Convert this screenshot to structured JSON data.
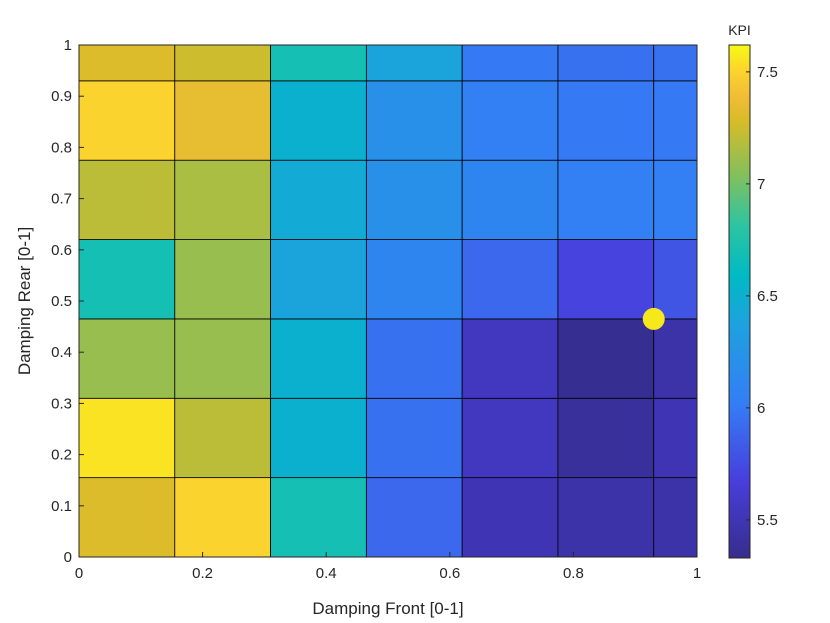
{
  "chart_data": {
    "type": "heatmap",
    "title": "",
    "xlabel": "Damping Front [0-1]",
    "ylabel": "Damping Rear [0-1]",
    "xlim": [
      0,
      1
    ],
    "ylim": [
      0,
      1
    ],
    "x_ticks": [
      "0",
      "0.2",
      "0.4",
      "0.6",
      "0.8",
      "1"
    ],
    "y_ticks": [
      "0",
      "0.1",
      "0.2",
      "0.3",
      "0.4",
      "0.5",
      "0.6",
      "0.7",
      "0.8",
      "0.9",
      "1"
    ],
    "x_edges": [
      0,
      0.155,
      0.31,
      0.465,
      0.62,
      0.775,
      0.93,
      1
    ],
    "y_edges": [
      0,
      0.155,
      0.31,
      0.465,
      0.62,
      0.775,
      0.93,
      1
    ],
    "values": [
      [
        7.3,
        7.5,
        6.7,
        5.9,
        5.5,
        5.45,
        5.45
      ],
      [
        7.55,
        7.2,
        6.5,
        5.95,
        5.55,
        5.4,
        5.5
      ],
      [
        7.1,
        7.1,
        6.5,
        5.95,
        5.55,
        5.35,
        5.45
      ],
      [
        6.7,
        7.1,
        6.4,
        6.1,
        5.9,
        5.7,
        5.8
      ],
      [
        7.2,
        7.15,
        6.45,
        6.2,
        6.1,
        6.05,
        6.05
      ],
      [
        7.5,
        7.35,
        6.5,
        6.2,
        6.05,
        6.0,
        6.0
      ],
      [
        7.3,
        7.25,
        6.7,
        6.4,
        6.0,
        5.95,
        5.95
      ]
    ],
    "colorbar": {
      "title": "KPI",
      "min": 5.33,
      "max": 7.62,
      "ticks": [
        5.5,
        6,
        6.5,
        7,
        7.5
      ],
      "tick_labels": [
        "5.5",
        "6",
        "6.5",
        "7",
        "7.5"
      ]
    },
    "marker": {
      "x": 0.93,
      "y": 0.465,
      "color": "#f7e81c"
    },
    "grid": false
  }
}
